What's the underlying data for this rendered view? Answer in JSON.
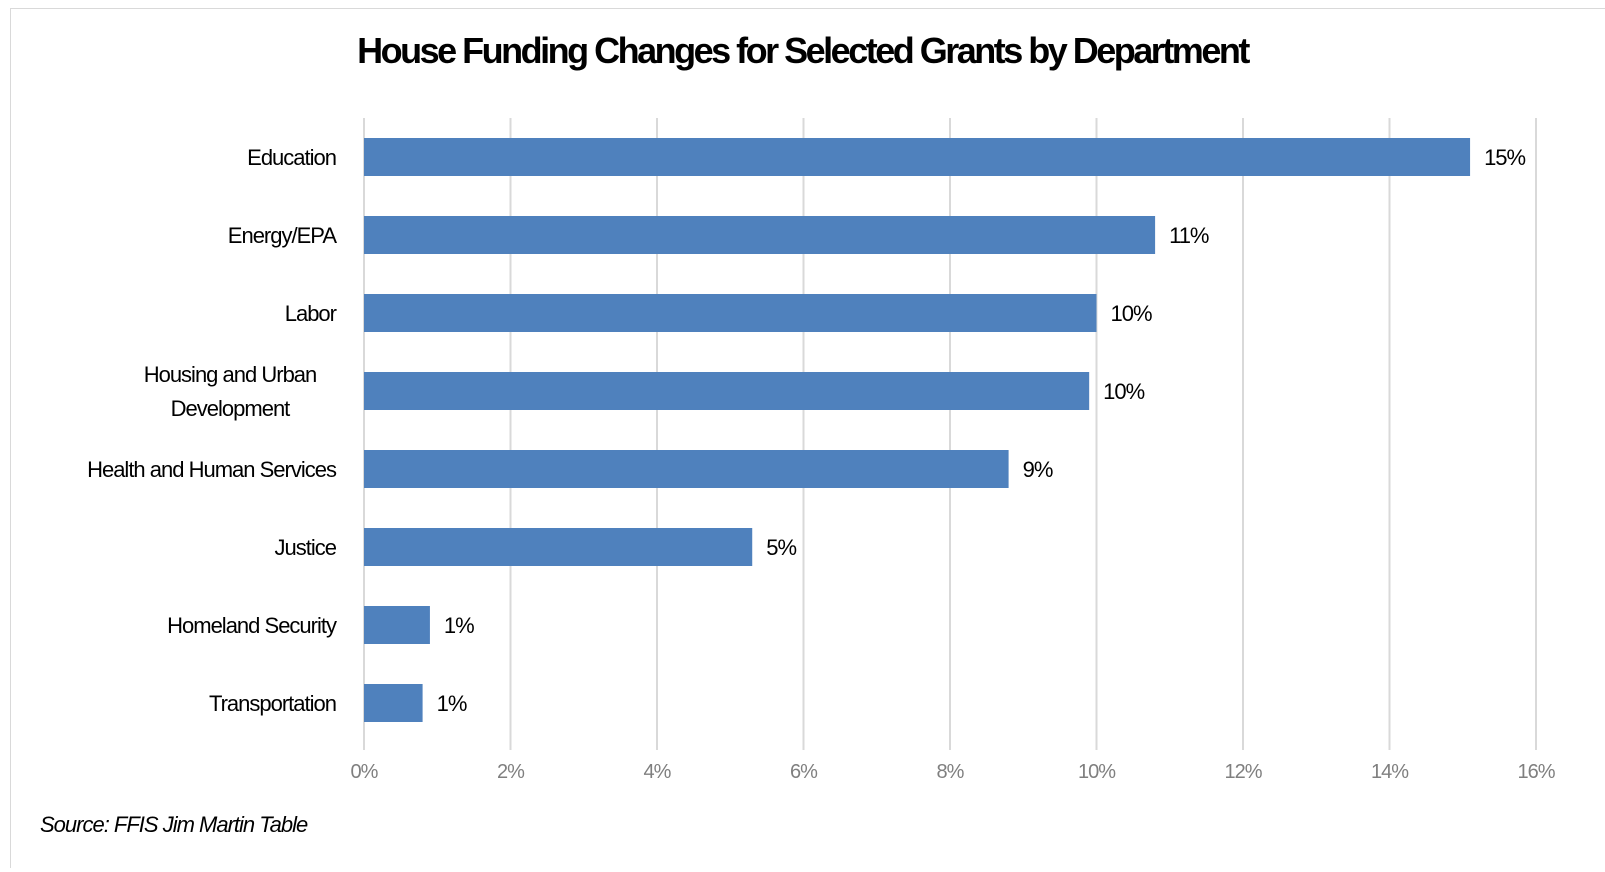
{
  "chart_data": {
    "type": "bar",
    "orientation": "horizontal",
    "title": "House Funding Changes for Selected Grants by Department",
    "categories": [
      [
        "Education"
      ],
      [
        "Energy/EPA"
      ],
      [
        "Labor"
      ],
      [
        "Housing and Urban",
        "Development"
      ],
      [
        "Health and Human Services"
      ],
      [
        "Justice"
      ],
      [
        "Homeland Security"
      ],
      [
        "Transportation"
      ]
    ],
    "values": [
      15.1,
      10.8,
      10.0,
      9.9,
      8.8,
      5.3,
      0.9,
      0.8
    ],
    "data_labels": [
      "15%",
      "11%",
      "10%",
      "10%",
      "9%",
      "5%",
      "1%",
      "1%"
    ],
    "xlim": [
      0,
      16
    ],
    "x_ticks": [
      "0%",
      "2%",
      "4%",
      "6%",
      "8%",
      "10%",
      "12%",
      "14%",
      "16%"
    ],
    "grid": true,
    "bar_color": "#4f81bd",
    "grid_color": "#d9d9d9",
    "tick_color": "#7f7f7f",
    "xlabel": "",
    "ylabel": ""
  },
  "source_note": "Source: FFIS Jim Martin Table"
}
